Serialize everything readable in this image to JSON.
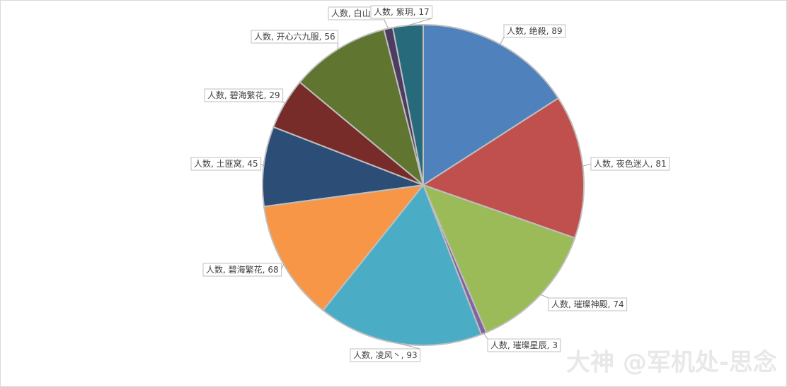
{
  "chart_data": {
    "type": "pie",
    "series_name": "人数",
    "label_separator": ", ",
    "categories": [
      "绝殺",
      "夜色迷人",
      "璀璨神殿",
      "璀璨星辰",
      "凌风丶",
      "碧海繁花",
      "土匪窝",
      "碧海繁花",
      "开心六九服",
      "白山",
      "紫玥"
    ],
    "values": [
      89,
      81,
      74,
      3,
      93,
      68,
      45,
      29,
      56,
      5,
      17
    ],
    "colors": [
      "#4f81bd",
      "#c0504d",
      "#9bbb59",
      "#8064a2",
      "#4bacc6",
      "#f79646",
      "#2c4d75",
      "#772c2a",
      "#5f7530",
      "#4d3b62",
      "#276a7c"
    ],
    "watermark": "大神 @军机处-思念"
  }
}
